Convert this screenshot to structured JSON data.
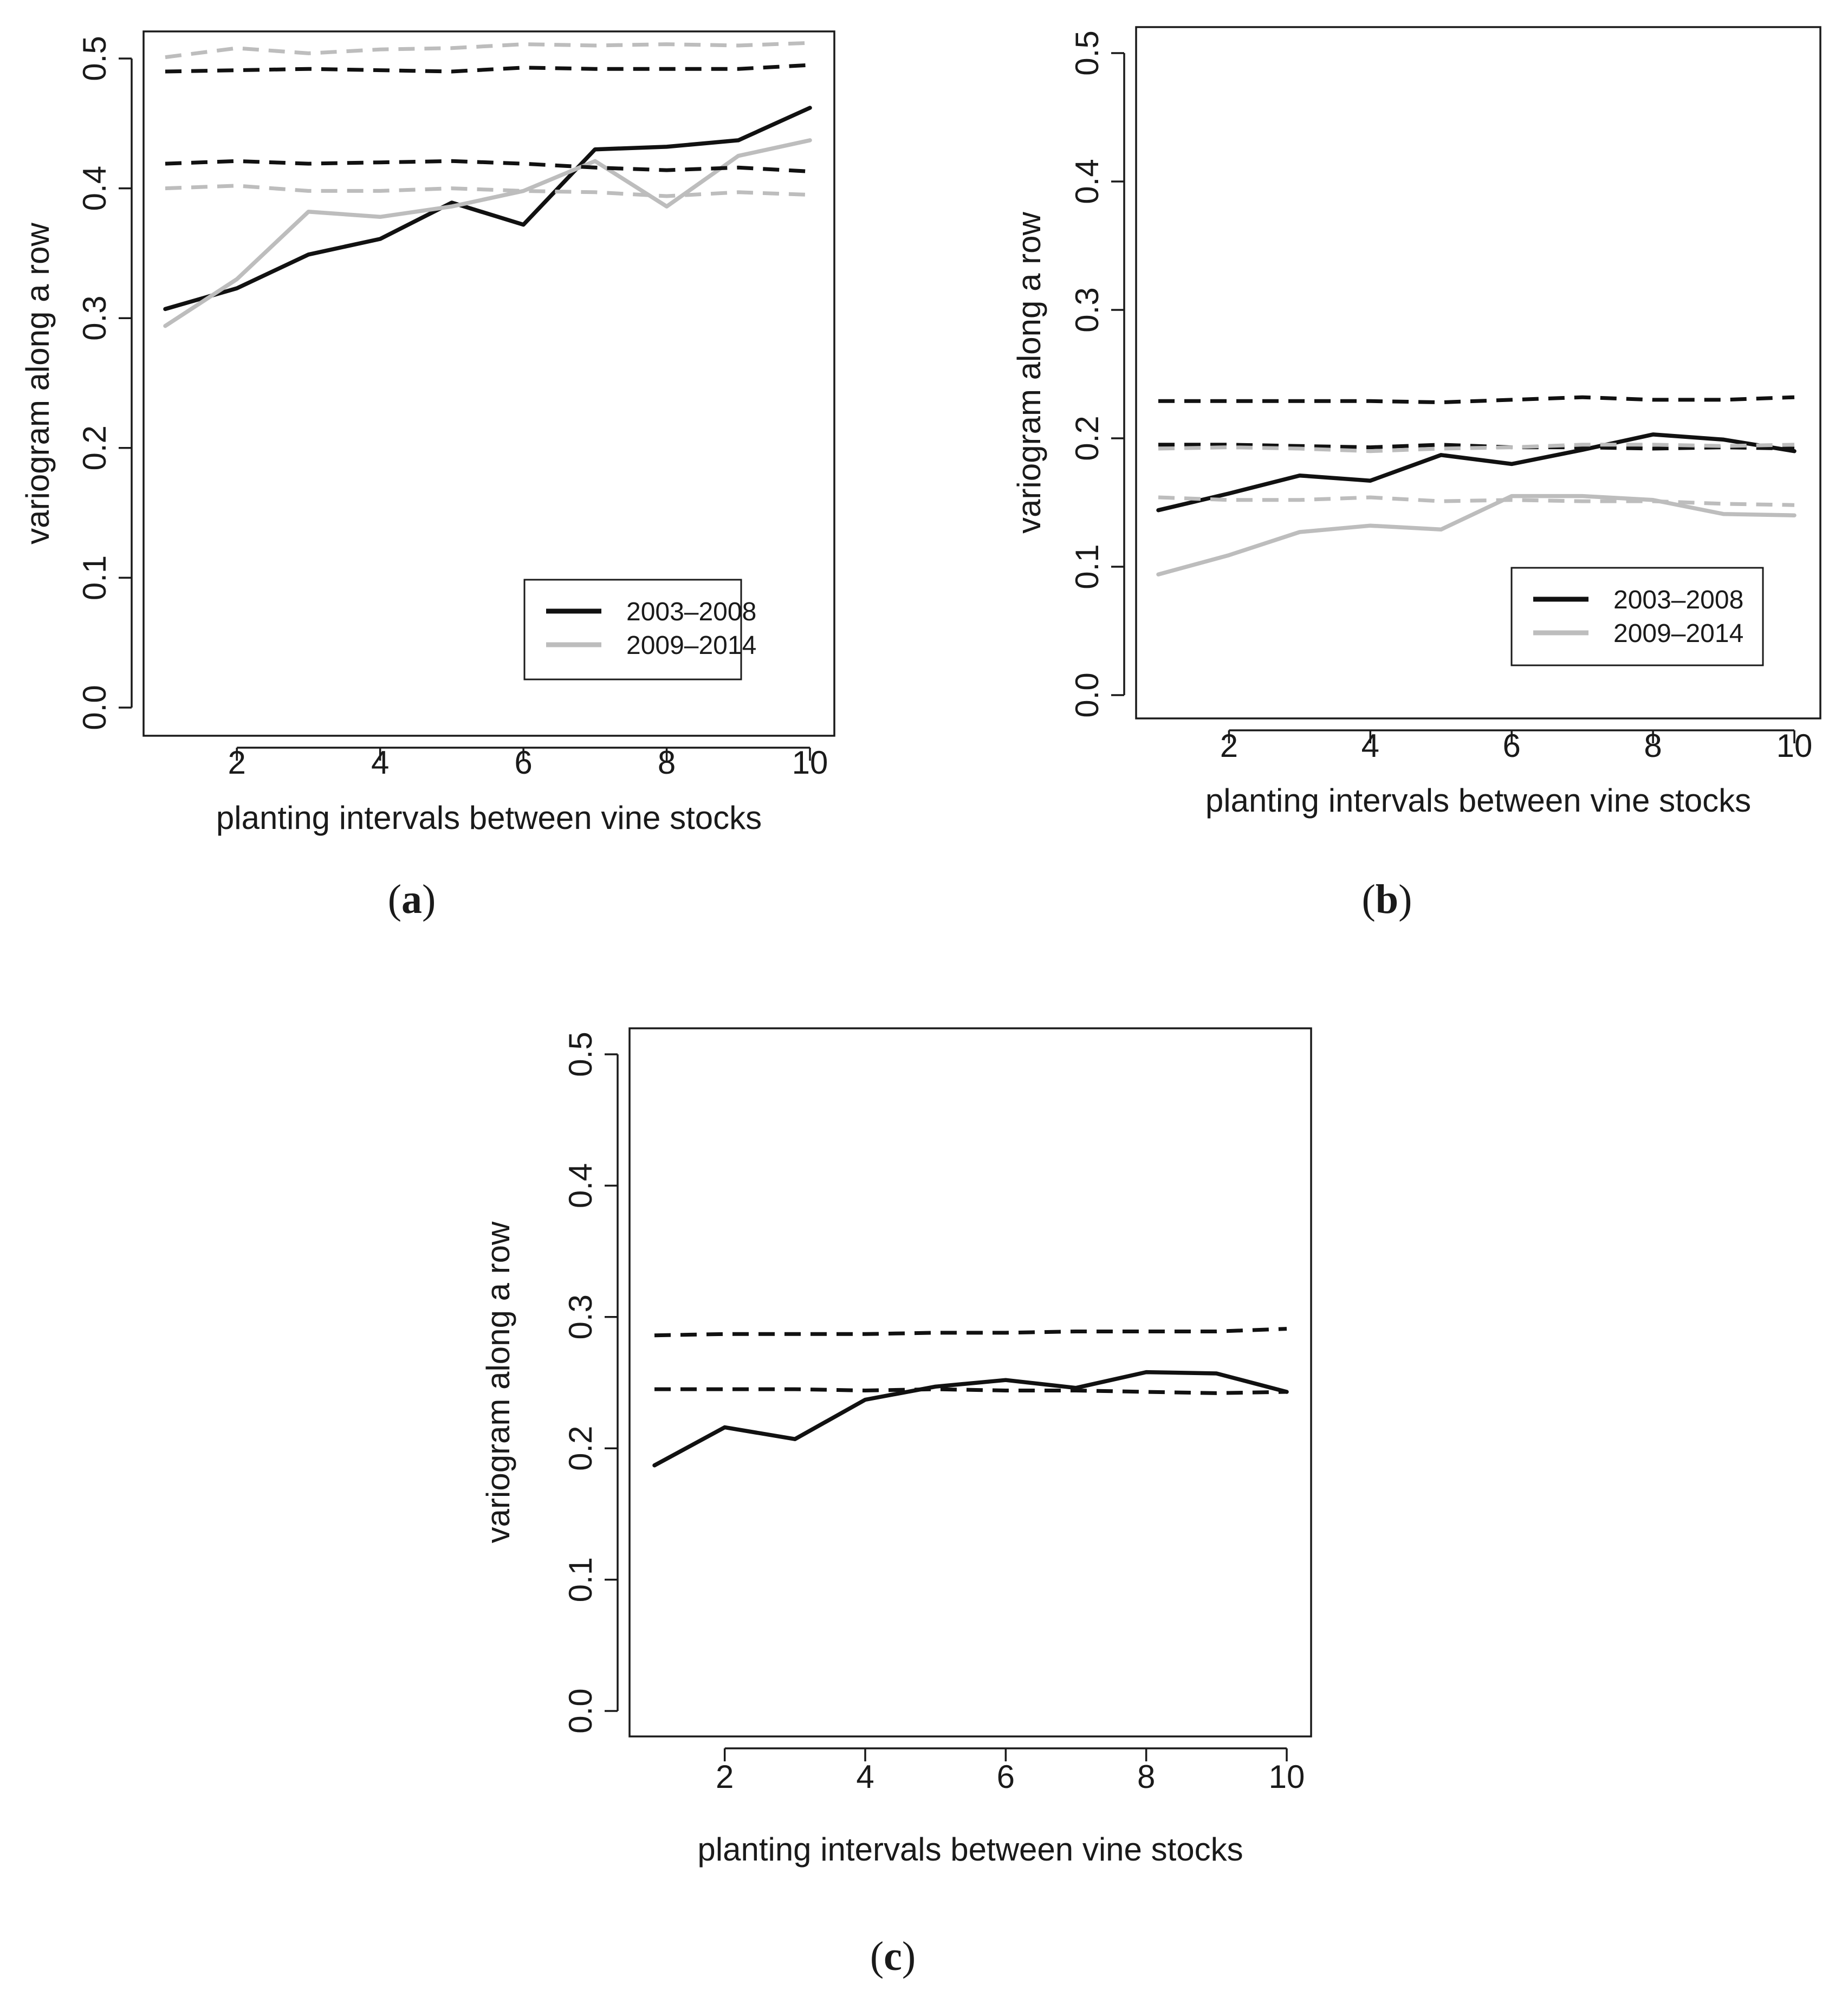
{
  "figure": {
    "panels": [
      {
        "id": "a",
        "label_open": "(",
        "label_letter": "a",
        "label_close": ")"
      },
      {
        "id": "b",
        "label_open": "(",
        "label_letter": "b",
        "label_close": ")"
      },
      {
        "id": "c",
        "label_open": "(",
        "label_letter": "c",
        "label_close": ")"
      }
    ]
  },
  "colors": {
    "black_series": "#111111",
    "grey_series": "#bdbdbd",
    "frame": "#1a1a1a",
    "background": "#ffffff"
  },
  "chart_data": [
    {
      "panel": "a",
      "type": "line",
      "xlabel": "planting intervals between vine stocks",
      "ylabel": "variogram along a row",
      "xlim": [
        1,
        10
      ],
      "ylim": [
        0,
        0.5
      ],
      "xticks": [
        2,
        4,
        6,
        8,
        10
      ],
      "xtick_labels": [
        "2",
        "4",
        "6",
        "8",
        "10"
      ],
      "yticks": [
        0,
        0.1,
        0.2,
        0.3,
        0.4,
        0.5
      ],
      "ytick_labels": [
        "0.0",
        "0.1",
        "0.2",
        "0.3",
        "0.4",
        "0.5"
      ],
      "legend": {
        "position": "bottom-right",
        "entries": [
          {
            "label": "2003–2008",
            "color": "#111111"
          },
          {
            "label": "2009–2014",
            "color": "#bdbdbd"
          }
        ]
      },
      "x": [
        1,
        2,
        3,
        4,
        5,
        6,
        7,
        8,
        9,
        10
      ],
      "series": [
        {
          "name": "2003–2008",
          "style": "solid",
          "color": "#111111",
          "values": [
            0.307,
            0.323,
            0.349,
            0.361,
            0.389,
            0.372,
            0.43,
            0.432,
            0.437,
            0.462
          ]
        },
        {
          "name": "2009–2014",
          "style": "solid",
          "color": "#bdbdbd",
          "values": [
            0.294,
            0.33,
            0.382,
            0.378,
            0.386,
            0.398,
            0.421,
            0.386,
            0.425,
            0.437
          ]
        },
        {
          "name": "2003–2008 envelope upper",
          "style": "dashed",
          "color": "#111111",
          "values": [
            0.49,
            0.491,
            0.492,
            0.491,
            0.49,
            0.493,
            0.492,
            0.492,
            0.492,
            0.495
          ]
        },
        {
          "name": "2003–2008 envelope lower",
          "style": "dashed",
          "color": "#111111",
          "values": [
            0.419,
            0.421,
            0.419,
            0.42,
            0.421,
            0.419,
            0.416,
            0.414,
            0.416,
            0.413
          ]
        },
        {
          "name": "2009–2014 envelope upper",
          "style": "dashed",
          "color": "#bdbdbd",
          "values": [
            0.501,
            0.508,
            0.504,
            0.507,
            0.508,
            0.511,
            0.51,
            0.511,
            0.51,
            0.512
          ]
        },
        {
          "name": "2009–2014 envelope lower",
          "style": "dashed",
          "color": "#bdbdbd",
          "values": [
            0.4,
            0.402,
            0.398,
            0.398,
            0.4,
            0.398,
            0.397,
            0.394,
            0.397,
            0.395
          ]
        }
      ]
    },
    {
      "panel": "b",
      "type": "line",
      "xlabel": "planting intervals between vine stocks",
      "ylabel": "variogram along a row",
      "xlim": [
        1,
        10
      ],
      "ylim": [
        0,
        0.5
      ],
      "xticks": [
        2,
        4,
        6,
        8,
        10
      ],
      "xtick_labels": [
        "2",
        "4",
        "6",
        "8",
        "10"
      ],
      "yticks": [
        0,
        0.1,
        0.2,
        0.3,
        0.4,
        0.5
      ],
      "ytick_labels": [
        "0.0",
        "0.1",
        "0.2",
        "0.3",
        "0.4",
        "0.5"
      ],
      "legend": {
        "position": "bottom-right",
        "entries": [
          {
            "label": "2003–2008",
            "color": "#111111"
          },
          {
            "label": "2009–2014",
            "color": "#bdbdbd"
          }
        ]
      },
      "x": [
        1,
        2,
        3,
        4,
        5,
        6,
        7,
        8,
        9,
        10
      ],
      "series": [
        {
          "name": "2003–2008",
          "style": "solid",
          "color": "#111111",
          "values": [
            0.144,
            0.157,
            0.171,
            0.167,
            0.187,
            0.18,
            0.191,
            0.203,
            0.199,
            0.19
          ]
        },
        {
          "name": "2009–2014",
          "style": "solid",
          "color": "#bdbdbd",
          "values": [
            0.094,
            0.109,
            0.127,
            0.132,
            0.129,
            0.155,
            0.155,
            0.152,
            0.141,
            0.14
          ]
        },
        {
          "name": "2003–2008 envelope upper",
          "style": "dashed",
          "color": "#111111",
          "values": [
            0.229,
            0.229,
            0.229,
            0.229,
            0.228,
            0.23,
            0.232,
            0.23,
            0.23,
            0.232
          ]
        },
        {
          "name": "2003–2008 envelope lower",
          "style": "dashed",
          "color": "#111111",
          "values": [
            0.195,
            0.195,
            0.194,
            0.193,
            0.195,
            0.193,
            0.193,
            0.192,
            0.193,
            0.192
          ]
        },
        {
          "name": "2009–2014 envelope upper",
          "style": "dashed",
          "color": "#bdbdbd",
          "values": [
            0.192,
            0.193,
            0.192,
            0.19,
            0.192,
            0.193,
            0.195,
            0.195,
            0.194,
            0.195
          ]
        },
        {
          "name": "2009–2014 envelope lower",
          "style": "dashed",
          "color": "#bdbdbd",
          "values": [
            0.154,
            0.152,
            0.152,
            0.154,
            0.151,
            0.152,
            0.151,
            0.151,
            0.149,
            0.148
          ]
        }
      ]
    },
    {
      "panel": "c",
      "type": "line",
      "xlabel": "planting intervals between vine stocks",
      "ylabel": "variogram along a row",
      "xlim": [
        1,
        10
      ],
      "ylim": [
        0,
        0.5
      ],
      "xticks": [
        2,
        4,
        6,
        8,
        10
      ],
      "xtick_labels": [
        "2",
        "4",
        "6",
        "8",
        "10"
      ],
      "yticks": [
        0,
        0.1,
        0.2,
        0.3,
        0.4,
        0.5
      ],
      "ytick_labels": [
        "0.0",
        "0.1",
        "0.2",
        "0.3",
        "0.4",
        "0.5"
      ],
      "legend": null,
      "x": [
        1,
        2,
        3,
        4,
        5,
        6,
        7,
        8,
        9,
        10
      ],
      "series": [
        {
          "name": "variogram",
          "style": "solid",
          "color": "#111111",
          "values": [
            0.187,
            0.216,
            0.207,
            0.237,
            0.247,
            0.252,
            0.246,
            0.258,
            0.257,
            0.243
          ]
        },
        {
          "name": "envelope upper",
          "style": "dashed",
          "color": "#111111",
          "values": [
            0.286,
            0.287,
            0.287,
            0.287,
            0.288,
            0.288,
            0.289,
            0.289,
            0.289,
            0.291
          ]
        },
        {
          "name": "envelope lower",
          "style": "dashed",
          "color": "#111111",
          "values": [
            0.245,
            0.245,
            0.245,
            0.244,
            0.245,
            0.244,
            0.244,
            0.243,
            0.242,
            0.243
          ]
        }
      ]
    }
  ]
}
